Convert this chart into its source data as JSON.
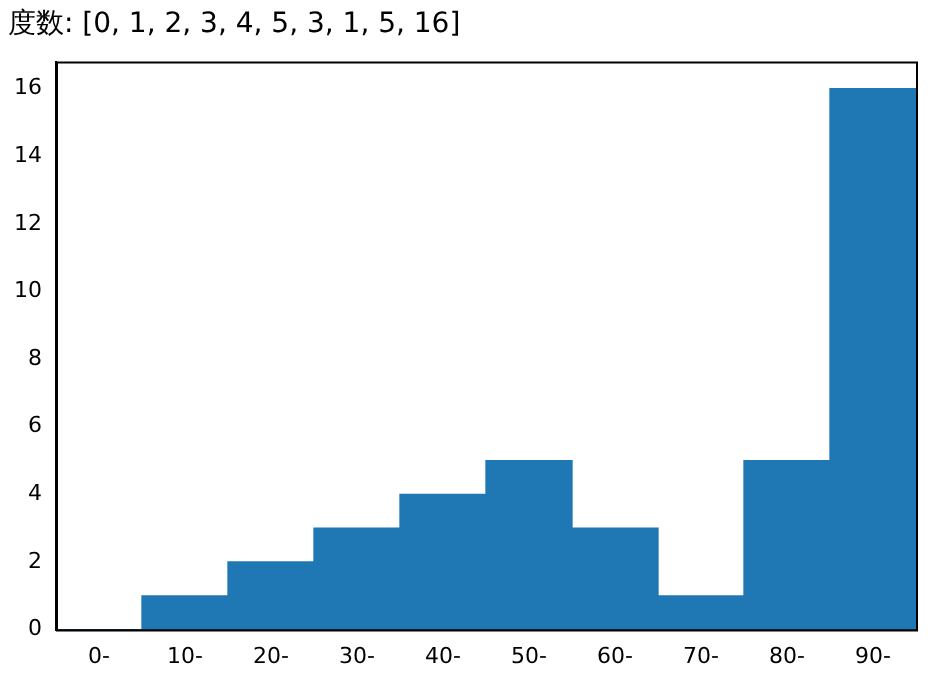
{
  "chart_data": {
    "type": "bar",
    "title": "度数: [0, 1, 2, 3, 4, 5, 3, 1, 5, 16]",
    "categories": [
      "0-",
      "10-",
      "20-",
      "30-",
      "40-",
      "50-",
      "60-",
      "70-",
      "80-",
      "90-"
    ],
    "values": [
      0,
      1,
      2,
      3,
      4,
      5,
      3,
      1,
      5,
      16
    ],
    "color": "#1f77b4",
    "ylim": [
      0,
      16.8
    ],
    "yticks": [
      0,
      2,
      4,
      6,
      8,
      10,
      12,
      14,
      16
    ],
    "grid": false,
    "legend": false
  }
}
